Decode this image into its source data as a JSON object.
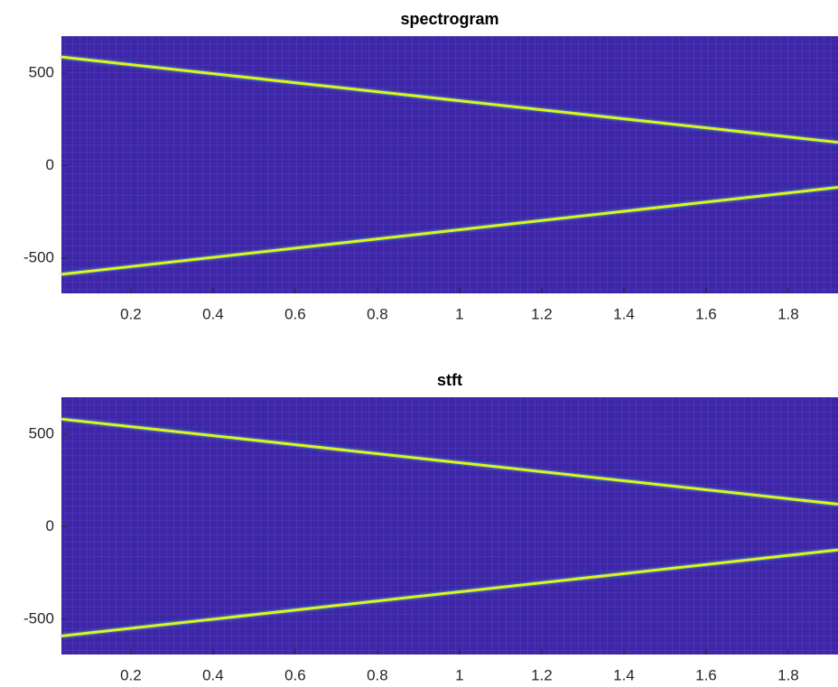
{
  "chart_data": [
    {
      "type": "line",
      "title": "spectrogram",
      "background": "#3e26a8",
      "xlim": [
        0.031,
        1.921
      ],
      "ylim": [
        -690,
        700
      ],
      "xticks": [
        0.2,
        0.4,
        0.6,
        0.8,
        1,
        1.2,
        1.4,
        1.6,
        1.8
      ],
      "yticks": [
        -500,
        0,
        500
      ],
      "series": [
        {
          "color": "#e8ef1a",
          "x": [
            0.031,
            1.921
          ],
          "values": [
            587,
            126
          ]
        },
        {
          "color": "#e8ef1a",
          "x": [
            0.031,
            1.921
          ],
          "values": [
            -587,
            -117
          ]
        }
      ]
    },
    {
      "type": "line",
      "title": "stft",
      "background": "#3e26a8",
      "xlim": [
        0.031,
        1.921
      ],
      "ylim": [
        -690,
        700
      ],
      "xticks": [
        0.2,
        0.4,
        0.6,
        0.8,
        1,
        1.2,
        1.4,
        1.6,
        1.8
      ],
      "yticks": [
        -500,
        0,
        500
      ],
      "series": [
        {
          "color": "#e8ef1a",
          "x": [
            0.031,
            1.921
          ],
          "values": [
            582,
            122
          ]
        },
        {
          "color": "#e8ef1a",
          "x": [
            0.031,
            1.921
          ],
          "values": [
            -590,
            -125
          ]
        }
      ]
    }
  ]
}
